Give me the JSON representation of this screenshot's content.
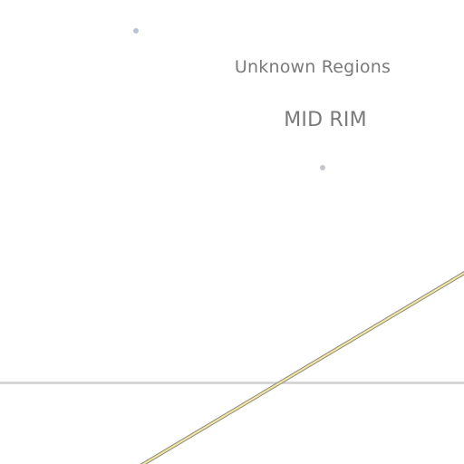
{
  "map": {
    "labels": {
      "unknown_regions": "Unknown Regions",
      "mid_rim": "MID RIM"
    },
    "colors": {
      "background": "#ffffff",
      "label_text": "#7a7a7a",
      "marker": "#b8c4d2",
      "boundary_line": "#cfcfcf",
      "route_fill": "#f3e6a4",
      "route_edge": "#8a8a7a"
    },
    "markers": [
      {
        "name": "location-marker-1"
      },
      {
        "name": "location-marker-2"
      }
    ],
    "features": {
      "boundary": "horizontal-boundary-line",
      "route": "hyperspace-lane"
    }
  }
}
